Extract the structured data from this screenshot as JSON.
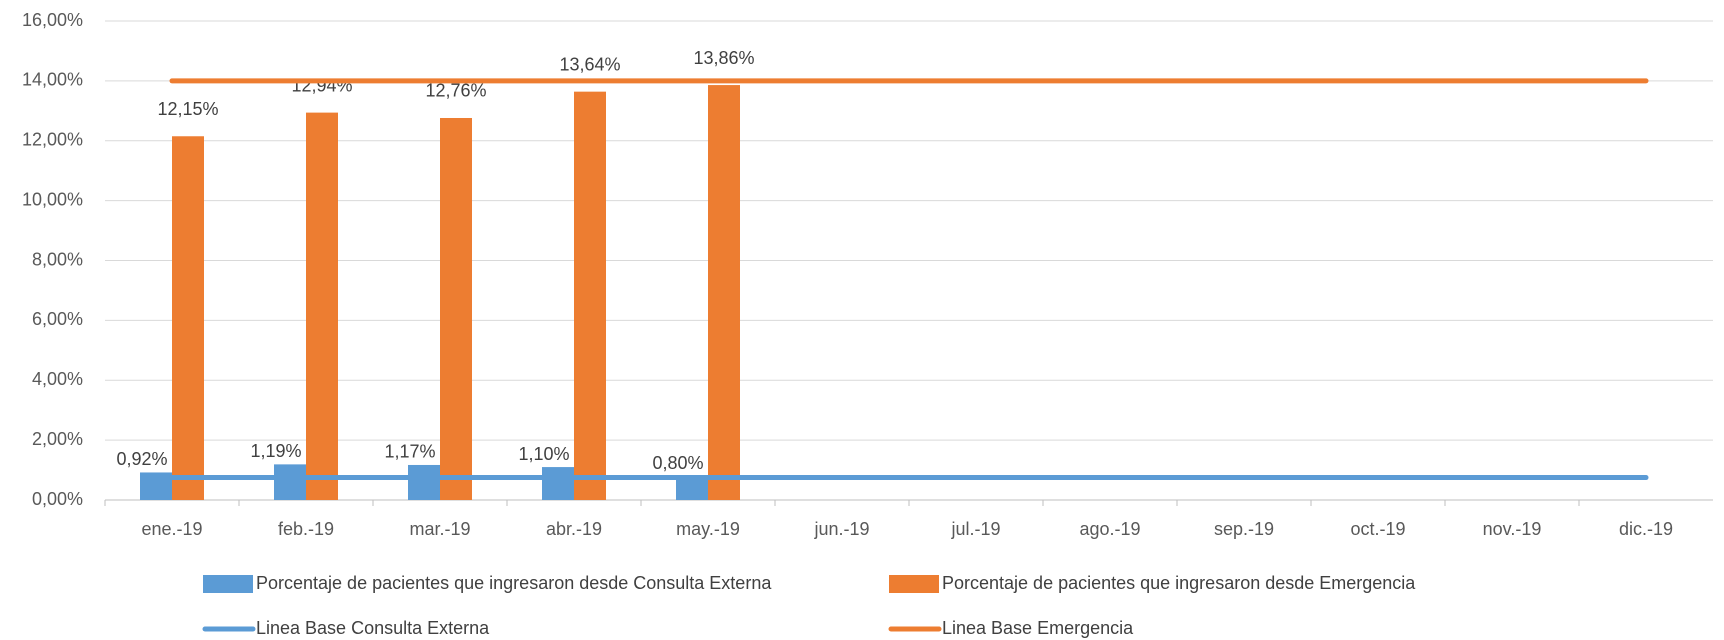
{
  "chart_data": {
    "type": "bar",
    "categories": [
      "ene.-19",
      "feb.-19",
      "mar.-19",
      "abr.-19",
      "may.-19",
      "jun.-19",
      "jul.-19",
      "ago.-19",
      "sep.-19",
      "oct.-19",
      "nov.-19",
      "dic.-19"
    ],
    "series": [
      {
        "name": "Porcentaje de pacientes que ingresaron desde Consulta Externa",
        "type": "bar",
        "color": "#5b9bd5",
        "values": [
          0.92,
          1.19,
          1.17,
          1.1,
          0.8,
          null,
          null,
          null,
          null,
          null,
          null,
          null
        ],
        "value_labels": [
          "0,92%",
          "1,19%",
          "1,17%",
          "1,10%",
          "0,80%",
          null,
          null,
          null,
          null,
          null,
          null,
          null
        ]
      },
      {
        "name": "Porcentaje de pacientes que ingresaron desde Emergencia",
        "type": "bar",
        "color": "#ed7d31",
        "values": [
          12.15,
          12.94,
          12.76,
          13.64,
          13.86,
          null,
          null,
          null,
          null,
          null,
          null,
          null
        ],
        "value_labels": [
          "12,15%",
          "12,94%",
          "12,76%",
          "13,64%",
          "13,86%",
          null,
          null,
          null,
          null,
          null,
          null,
          null
        ]
      },
      {
        "name": "Linea Base Consulta Externa",
        "type": "line",
        "color": "#5b9bd5",
        "values": [
          0.75,
          0.75,
          0.75,
          0.75,
          0.75,
          0.75,
          0.75,
          0.75,
          0.75,
          0.75,
          0.75,
          0.75
        ]
      },
      {
        "name": "Linea Base Emergencia",
        "type": "line",
        "color": "#ed7d31",
        "values": [
          14,
          14,
          14,
          14,
          14,
          14,
          14,
          14,
          14,
          14,
          14,
          14
        ]
      }
    ],
    "ylim": [
      0,
      16
    ],
    "yticks": [
      {
        "value": 0,
        "label": "0,00%"
      },
      {
        "value": 2,
        "label": "2,00%"
      },
      {
        "value": 4,
        "label": "4,00%"
      },
      {
        "value": 6,
        "label": "6,00%"
      },
      {
        "value": 8,
        "label": "8,00%"
      },
      {
        "value": 10,
        "label": "10,00%"
      },
      {
        "value": 12,
        "label": "12,00%"
      },
      {
        "value": 14,
        "label": "14,00%"
      },
      {
        "value": 16,
        "label": "16,00%"
      }
    ],
    "grid": true,
    "legend": "bottom"
  }
}
